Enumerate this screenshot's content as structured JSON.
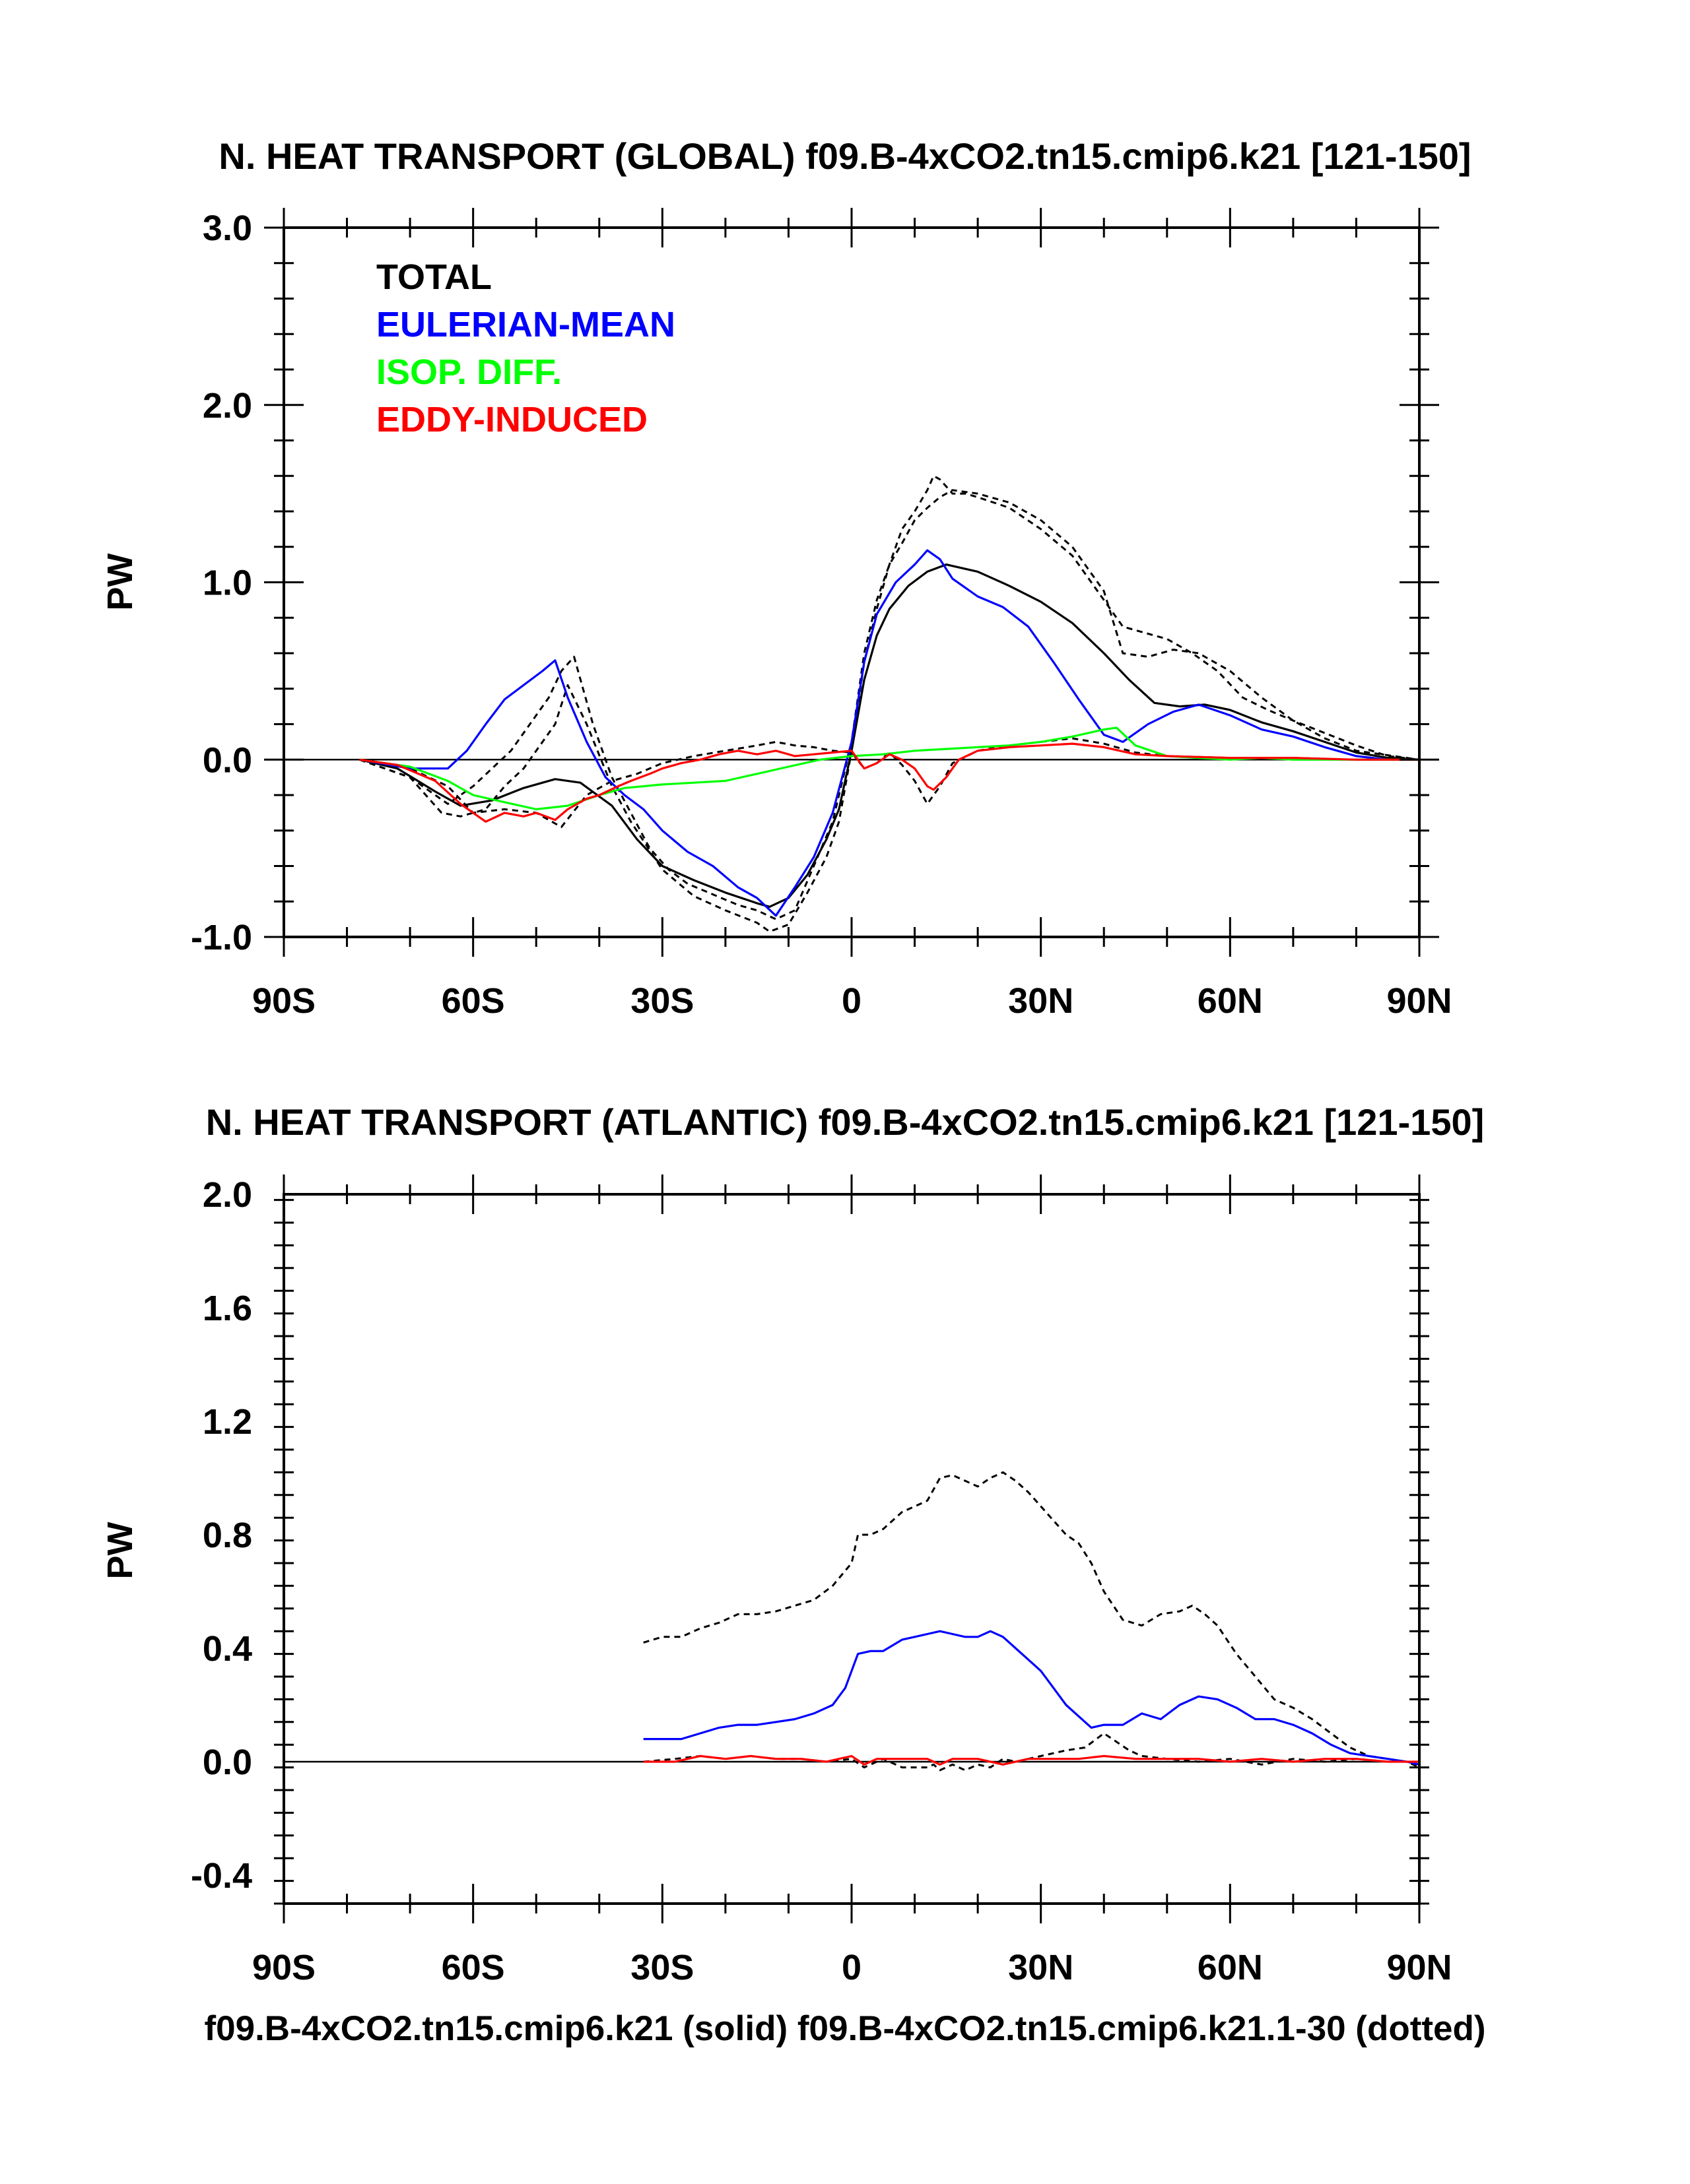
{
  "colors": {
    "total": "#000000",
    "eulerian": "#0000ff",
    "isop": "#00ff00",
    "eddy": "#ff0000"
  },
  "footer": "f09.B-4xCO2.tn15.cmip6.k21 (solid) f09.B-4xCO2.tn15.cmip6.k21.1-30 (dotted)",
  "chart_data": [
    {
      "type": "line",
      "title": "N. HEAT TRANSPORT (GLOBAL) f09.B-4xCO2.tn15.cmip6.k21 [121-150]",
      "xlabel": "",
      "ylabel": "PW",
      "xlim": [
        -90,
        90
      ],
      "ylim": [
        -1.0,
        3.0
      ],
      "xticks": [
        -90,
        -60,
        -30,
        0,
        30,
        60,
        90
      ],
      "xtick_labels": [
        "90S",
        "60S",
        "30S",
        "0",
        "30N",
        "60N",
        "90N"
      ],
      "yticks": [
        -1.0,
        0.0,
        1.0,
        2.0,
        3.0
      ],
      "ytick_labels": [
        "-1.0",
        "0.0",
        "1.0",
        "2.0",
        "3.0"
      ],
      "legend": [
        "TOTAL",
        "EULERIAN-MEAN",
        "ISOP. DIFF.",
        "EDDY-INDUCED"
      ],
      "legend_position": "top-left",
      "series": [
        {
          "name": "TOTAL",
          "color": "#000000",
          "style": "solid",
          "x": [
            -78,
            -72,
            -66,
            -62,
            -57,
            -52,
            -47,
            -43,
            -38,
            -34,
            -30,
            -25,
            -20,
            -15,
            -13,
            -10,
            -7,
            -4,
            -2,
            0,
            2,
            4,
            6,
            9,
            12,
            15,
            20,
            25,
            30,
            35,
            40,
            44,
            48,
            52,
            56,
            60,
            65,
            70,
            75,
            80,
            85,
            90
          ],
          "y": [
            0,
            -0.05,
            -0.18,
            -0.26,
            -0.23,
            -0.16,
            -0.11,
            -0.13,
            -0.26,
            -0.45,
            -0.6,
            -0.68,
            -0.75,
            -0.81,
            -0.83,
            -0.78,
            -0.65,
            -0.45,
            -0.28,
            0.05,
            0.45,
            0.7,
            0.85,
            0.98,
            1.06,
            1.1,
            1.06,
            0.98,
            0.89,
            0.77,
            0.6,
            0.45,
            0.32,
            0.3,
            0.31,
            0.28,
            0.21,
            0.16,
            0.1,
            0.04,
            0.01,
            0
          ]
        },
        {
          "name": "EULERIAN-MEAN",
          "color": "#0000ff",
          "style": "solid",
          "x": [
            -78,
            -70,
            -64,
            -61,
            -58,
            -55,
            -52,
            -49,
            -47,
            -45,
            -42,
            -39,
            -36,
            -33,
            -30,
            -26,
            -22,
            -18,
            -15,
            -12,
            -9,
            -6,
            -3,
            0,
            2,
            4,
            7,
            10,
            12,
            14,
            16,
            20,
            24,
            28,
            32,
            36,
            40,
            43,
            47,
            51,
            55,
            60,
            65,
            70,
            75,
            80,
            85,
            90
          ],
          "y": [
            0,
            -0.05,
            -0.05,
            0.05,
            0.2,
            0.34,
            0.42,
            0.5,
            0.56,
            0.35,
            0.1,
            -0.1,
            -0.2,
            -0.28,
            -0.4,
            -0.52,
            -0.6,
            -0.72,
            -0.78,
            -0.88,
            -0.72,
            -0.55,
            -0.3,
            0.1,
            0.55,
            0.82,
            1.0,
            1.1,
            1.18,
            1.13,
            1.02,
            0.92,
            0.86,
            0.75,
            0.55,
            0.34,
            0.14,
            0.1,
            0.2,
            0.27,
            0.31,
            0.25,
            0.17,
            0.13,
            0.07,
            0.02,
            0,
            0
          ]
        },
        {
          "name": "ISOP. DIFF.",
          "color": "#00ff00",
          "style": "solid",
          "x": [
            -78,
            -70,
            -64,
            -60,
            -55,
            -50,
            -45,
            -40,
            -36,
            -33,
            -30,
            -25,
            -20,
            -15,
            -10,
            -5,
            0,
            5,
            10,
            15,
            20,
            25,
            30,
            35,
            40,
            42,
            45,
            50,
            55,
            60,
            65,
            70,
            75,
            80,
            90
          ],
          "y": [
            0,
            -0.04,
            -0.12,
            -0.2,
            -0.24,
            -0.28,
            -0.26,
            -0.2,
            -0.16,
            -0.15,
            -0.14,
            -0.13,
            -0.12,
            -0.08,
            -0.04,
            0,
            0.02,
            0.03,
            0.05,
            0.06,
            0.07,
            0.08,
            0.1,
            0.13,
            0.17,
            0.18,
            0.08,
            0.02,
            0.01,
            0,
            0.01,
            0,
            0,
            0,
            0
          ]
        },
        {
          "name": "EDDY-INDUCED",
          "color": "#ff0000",
          "style": "solid",
          "x": [
            -78,
            -72,
            -66,
            -62,
            -60,
            -58,
            -55,
            -52,
            -50,
            -47,
            -45,
            -42,
            -40,
            -37,
            -35,
            -32,
            -30,
            -27,
            -24,
            -21,
            -18,
            -15,
            -12,
            -9,
            -6,
            -3,
            0,
            2,
            4,
            6,
            8,
            10,
            12,
            13,
            15,
            17,
            20,
            25,
            30,
            35,
            40,
            45,
            50,
            60,
            70,
            80,
            90
          ],
          "y": [
            0,
            -0.03,
            -0.12,
            -0.25,
            -0.3,
            -0.35,
            -0.3,
            -0.32,
            -0.3,
            -0.34,
            -0.28,
            -0.22,
            -0.2,
            -0.15,
            -0.12,
            -0.08,
            -0.05,
            -0.02,
            0,
            0.03,
            0.05,
            0.03,
            0.05,
            0.02,
            0.03,
            0.04,
            0.05,
            -0.05,
            -0.02,
            0.03,
            0,
            -0.05,
            -0.15,
            -0.17,
            -0.1,
            0,
            0.05,
            0.07,
            0.08,
            0.09,
            0.07,
            0.03,
            0.02,
            0.01,
            0.01,
            0,
            0
          ]
        },
        {
          "name": "TOTAL (1-30)",
          "color": "#000000",
          "style": "dotted",
          "x": [
            -78,
            -70,
            -65,
            -62,
            -58,
            -55,
            -52,
            -49,
            -47,
            -45,
            -42,
            -38,
            -35,
            -30,
            -25,
            -20,
            -15,
            -13,
            -10,
            -7,
            -4,
            -2,
            0,
            2,
            4,
            6,
            8,
            10,
            12,
            13,
            14,
            16,
            18,
            20,
            25,
            30,
            35,
            40,
            43,
            46,
            50,
            54,
            58,
            62,
            66,
            70,
            75,
            80,
            85,
            90
          ],
          "y": [
            0,
            -0.1,
            -0.3,
            -0.32,
            -0.28,
            -0.15,
            -0.05,
            0.1,
            0.2,
            0.42,
            0.2,
            -0.15,
            -0.35,
            -0.62,
            -0.77,
            -0.85,
            -0.92,
            -0.97,
            -0.93,
            -0.75,
            -0.55,
            -0.35,
            0.05,
            0.55,
            0.85,
            1.1,
            1.3,
            1.4,
            1.52,
            1.6,
            1.58,
            1.5,
            1.5,
            1.48,
            1.42,
            1.3,
            1.15,
            0.9,
            0.75,
            0.72,
            0.68,
            0.6,
            0.5,
            0.35,
            0.28,
            0.22,
            0.15,
            0.08,
            0.02,
            0
          ]
        },
        {
          "name": "EULERIAN-MEAN (1-30)",
          "color": "#000000",
          "style": "dotted",
          "x": [
            -78,
            -70,
            -64,
            -60,
            -57,
            -54,
            -51,
            -48,
            -46,
            -44,
            -41,
            -38,
            -35,
            -32,
            -29,
            -26,
            -22,
            -18,
            -15,
            -12,
            -9,
            -6,
            -3,
            0,
            2,
            4,
            6,
            8,
            10,
            12,
            14,
            16,
            20,
            25,
            30,
            35,
            40,
            43,
            47,
            51,
            55,
            60,
            65,
            70,
            75,
            80,
            90
          ],
          "y": [
            0,
            -0.1,
            -0.25,
            -0.15,
            -0.05,
            0.05,
            0.2,
            0.35,
            0.5,
            0.58,
            0.2,
            -0.1,
            -0.3,
            -0.5,
            -0.62,
            -0.7,
            -0.76,
            -0.82,
            -0.85,
            -0.9,
            -0.85,
            -0.6,
            -0.35,
            0.1,
            0.6,
            0.9,
            1.1,
            1.22,
            1.35,
            1.42,
            1.48,
            1.52,
            1.5,
            1.45,
            1.35,
            1.2,
            0.95,
            0.6,
            0.58,
            0.62,
            0.6,
            0.5,
            0.35,
            0.22,
            0.12,
            0.05,
            0
          ]
        },
        {
          "name": "EDDY-INDUCED (1-30)",
          "color": "#000000",
          "style": "dotted",
          "x": [
            -78,
            -70,
            -64,
            -60,
            -55,
            -50,
            -46,
            -42,
            -38,
            -34,
            -30,
            -25,
            -20,
            -15,
            -12,
            -9,
            -6,
            -3,
            0,
            2,
            4,
            6,
            8,
            10,
            12,
            14,
            16,
            20,
            25,
            30,
            35,
            40,
            45,
            50,
            60,
            70,
            80,
            90
          ],
          "y": [
            0,
            -0.05,
            -0.15,
            -0.3,
            -0.28,
            -0.3,
            -0.38,
            -0.2,
            -0.12,
            -0.08,
            -0.02,
            0.02,
            0.05,
            0.08,
            0.1,
            0.08,
            0.07,
            0.05,
            0.04,
            -0.05,
            -0.02,
            0.04,
            -0.03,
            -0.12,
            -0.25,
            -0.15,
            -0.02,
            0.05,
            0.08,
            0.1,
            0.12,
            0.09,
            0.04,
            0.02,
            0.01,
            0.01,
            0,
            0
          ]
        }
      ]
    },
    {
      "type": "line",
      "title": "N. HEAT TRANSPORT (ATLANTIC) f09.B-4xCO2.tn15.cmip6.k21 [121-150]",
      "xlabel": "",
      "ylabel": "PW",
      "xlim": [
        -90,
        90
      ],
      "ylim": [
        -0.5,
        2.0
      ],
      "xticks": [
        -90,
        -60,
        -30,
        0,
        30,
        60,
        90
      ],
      "xtick_labels": [
        "90S",
        "60S",
        "30S",
        "0",
        "30N",
        "60N",
        "90N"
      ],
      "yticks": [
        -0.4,
        0.0,
        0.4,
        0.8,
        1.2,
        1.6,
        2.0
      ],
      "ytick_labels": [
        "-0.4",
        "0.0",
        "0.4",
        "0.8",
        "1.2",
        "1.6",
        "2.0"
      ],
      "series": [
        {
          "name": "EULERIAN-MEAN",
          "color": "#0000ff",
          "style": "solid",
          "x": [
            -33,
            -30,
            -27,
            -24,
            -21,
            -18,
            -15,
            -12,
            -9,
            -6,
            -3,
            -1,
            0,
            1,
            3,
            5,
            8,
            10,
            12,
            14,
            16,
            18,
            20,
            22,
            24,
            26,
            28,
            30,
            32,
            34,
            36,
            38,
            40,
            43,
            46,
            49,
            52,
            55,
            58,
            61,
            64,
            67,
            70,
            73,
            76,
            79,
            82,
            85,
            88,
            90
          ],
          "y": [
            0.08,
            0.08,
            0.08,
            0.1,
            0.12,
            0.13,
            0.13,
            0.14,
            0.15,
            0.17,
            0.2,
            0.26,
            0.32,
            0.38,
            0.39,
            0.39,
            0.43,
            0.44,
            0.45,
            0.46,
            0.45,
            0.44,
            0.44,
            0.46,
            0.44,
            0.4,
            0.36,
            0.32,
            0.26,
            0.2,
            0.16,
            0.12,
            0.13,
            0.13,
            0.17,
            0.15,
            0.2,
            0.23,
            0.22,
            0.19,
            0.15,
            0.15,
            0.13,
            0.1,
            0.06,
            0.03,
            0.02,
            0.01,
            0,
            -0.01
          ]
        },
        {
          "name": "EDDY-INDUCED",
          "color": "#ff0000",
          "style": "solid",
          "x": [
            -33,
            -28,
            -24,
            -20,
            -16,
            -12,
            -8,
            -4,
            0,
            2,
            4,
            8,
            12,
            14,
            16,
            20,
            24,
            28,
            32,
            36,
            40,
            45,
            50,
            55,
            60,
            65,
            70,
            75,
            80,
            85,
            90
          ],
          "y": [
            0,
            0,
            0.02,
            0.01,
            0.02,
            0.01,
            0.01,
            0,
            0.02,
            -0.01,
            0.01,
            0.01,
            0.01,
            -0.01,
            0.01,
            0.01,
            -0.01,
            0.01,
            0.01,
            0.01,
            0.02,
            0.01,
            0.01,
            0.01,
            0,
            0.01,
            0,
            0.01,
            0.01,
            0,
            0
          ]
        },
        {
          "name": "EULERIAN-MEAN (1-30)",
          "color": "#000000",
          "style": "dotted",
          "x": [
            -33,
            -30,
            -27,
            -24,
            -21,
            -18,
            -15,
            -12,
            -9,
            -6,
            -3,
            0,
            1,
            3,
            5,
            8,
            10,
            12,
            14,
            16,
            18,
            20,
            22,
            24,
            26,
            28,
            30,
            32,
            34,
            36,
            38,
            40,
            43,
            46,
            49,
            52,
            54,
            56,
            58,
            61,
            64,
            67,
            70,
            73,
            76,
            79,
            82,
            85,
            88,
            90
          ],
          "y": [
            0.42,
            0.44,
            0.44,
            0.47,
            0.49,
            0.52,
            0.52,
            0.53,
            0.55,
            0.57,
            0.62,
            0.7,
            0.8,
            0.8,
            0.82,
            0.88,
            0.9,
            0.92,
            1.0,
            1.01,
            0.99,
            0.97,
            1.0,
            1.02,
            0.99,
            0.95,
            0.9,
            0.85,
            0.8,
            0.77,
            0.7,
            0.6,
            0.5,
            0.48,
            0.52,
            0.53,
            0.55,
            0.52,
            0.48,
            0.38,
            0.3,
            0.22,
            0.19,
            0.15,
            0.1,
            0.05,
            0.02,
            0.01,
            0,
            -0.02
          ]
        },
        {
          "name": "EDDY-INDUCED (1-30)",
          "color": "#000000",
          "style": "dotted",
          "x": [
            -33,
            -28,
            -24,
            -20,
            -16,
            -12,
            -8,
            -4,
            0,
            2,
            5,
            8,
            12,
            13,
            14,
            16,
            18,
            20,
            22,
            24,
            26,
            30,
            34,
            37,
            40,
            42,
            44,
            46,
            50,
            55,
            60,
            65,
            70,
            75,
            80,
            85,
            90
          ],
          "y": [
            0,
            0.01,
            0.02,
            0.01,
            0.02,
            0.01,
            0.01,
            0,
            0.01,
            -0.02,
            0.01,
            -0.02,
            -0.02,
            -0.01,
            -0.03,
            -0.01,
            -0.03,
            -0.01,
            -0.02,
            0.01,
            0,
            0.02,
            0.04,
            0.05,
            0.1,
            0.07,
            0.04,
            0.02,
            0.01,
            0,
            0.01,
            -0.01,
            0.01,
            0,
            0.01,
            0,
            0
          ]
        }
      ]
    }
  ]
}
